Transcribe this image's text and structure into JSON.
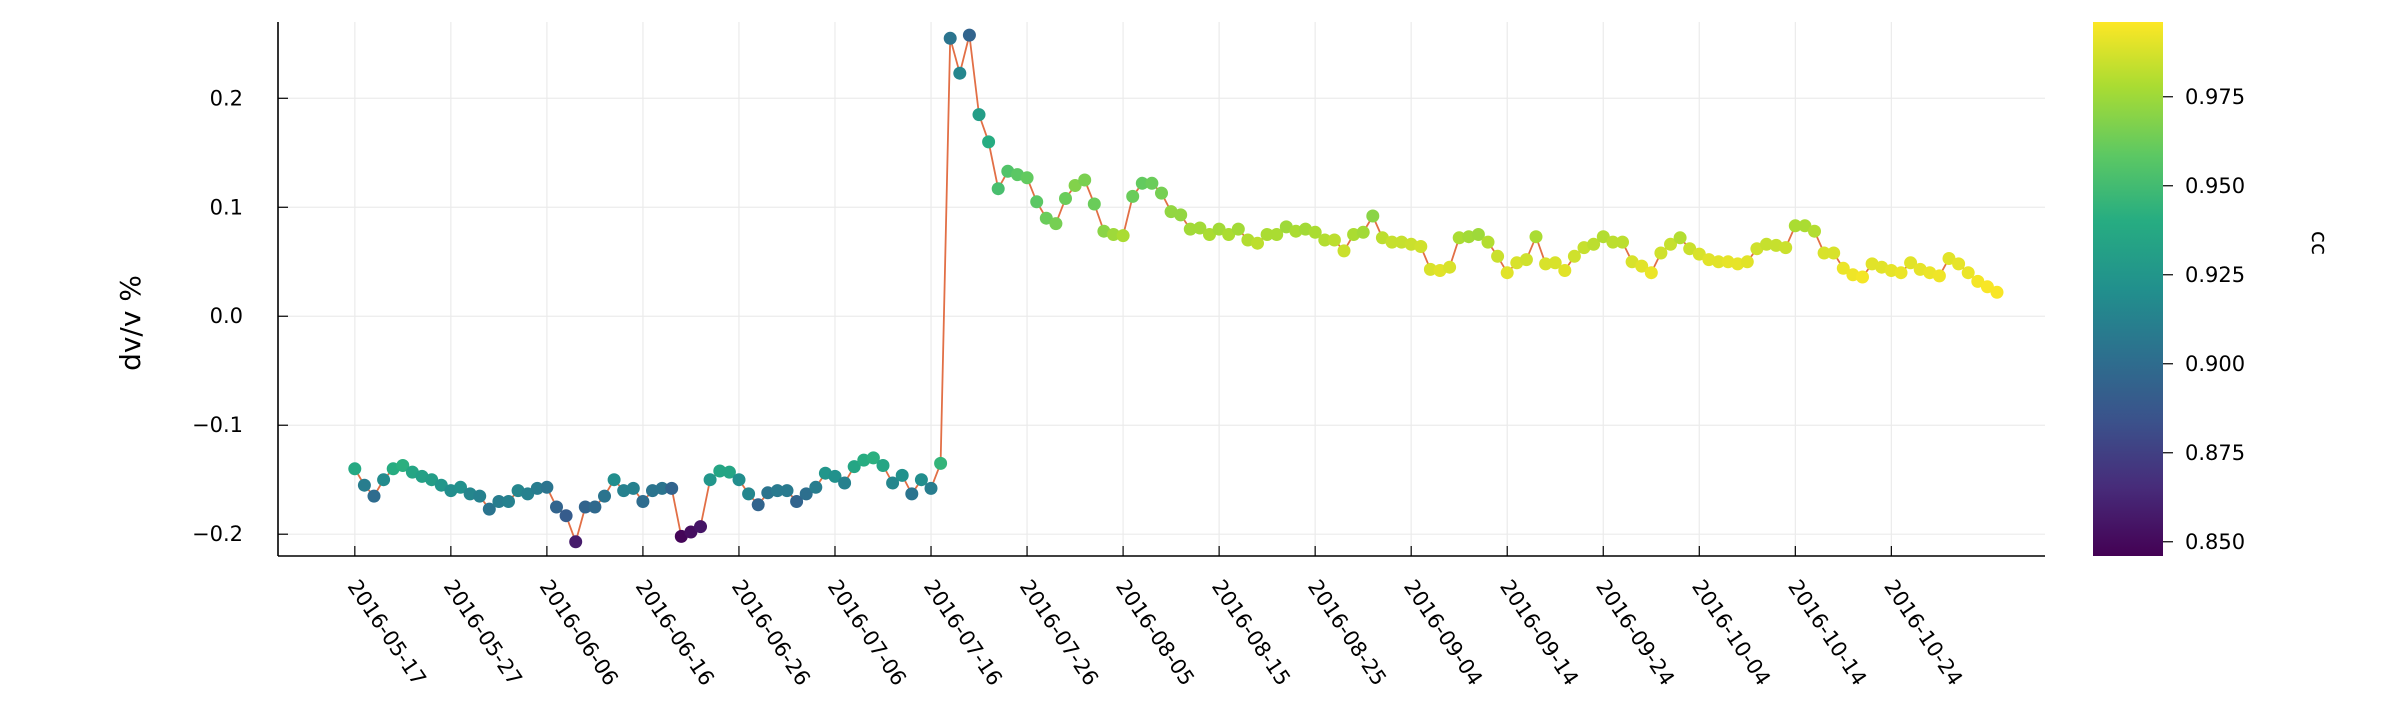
{
  "chart_data": {
    "type": "scatter",
    "title": "",
    "xlabel": "",
    "ylabel": "dv/v %",
    "ylim": [
      -0.22,
      0.27
    ],
    "xlim": [
      "2016-05-09",
      "2016-11-09"
    ],
    "yticks": [
      "0.2",
      "0.1",
      "0.0",
      "-0.1",
      "-0.2"
    ],
    "xticks": [
      "2016-05-17",
      "2016-05-27",
      "2016-06-06",
      "2016-06-16",
      "2016-06-26",
      "2016-07-06",
      "2016-07-16",
      "2016-07-26",
      "2016-08-05",
      "2016-08-15",
      "2016-08-25",
      "2016-09-04",
      "2016-09-14",
      "2016-09-24",
      "2016-10-04",
      "2016-10-14",
      "2016-10-24"
    ],
    "grid": true,
    "legend": "none",
    "line_color": "#e26f46",
    "colorbar": {
      "label": "cc",
      "range": [
        0.846,
        0.996
      ],
      "ticks": [
        "0.975",
        "0.950",
        "0.925",
        "0.900",
        "0.875",
        "0.850"
      ],
      "colormap": "viridis"
    },
    "series": [
      {
        "start_date": "2016-05-17",
        "step": "1 day",
        "dvv": [
          -0.14,
          -0.155,
          -0.165,
          -0.15,
          -0.14,
          -0.137,
          -0.143,
          -0.147,
          -0.15,
          -0.155,
          -0.16,
          -0.157,
          -0.163,
          -0.165,
          -0.177,
          -0.17,
          -0.17,
          -0.16,
          -0.163,
          -0.158,
          -0.157,
          -0.175,
          -0.183,
          -0.207,
          -0.175,
          -0.175,
          -0.165,
          -0.15,
          -0.16,
          -0.158,
          -0.17,
          -0.16,
          -0.158,
          -0.158,
          -0.202,
          -0.198,
          -0.193,
          -0.15,
          -0.142,
          -0.143,
          -0.15,
          -0.163,
          -0.173,
          -0.162,
          -0.16,
          -0.16,
          -0.17,
          -0.163,
          -0.157,
          -0.144,
          -0.147,
          -0.153,
          -0.138,
          -0.132,
          -0.13,
          -0.137,
          -0.153,
          -0.146,
          -0.163,
          -0.15,
          -0.158,
          -0.135,
          0.255,
          0.223,
          0.258,
          0.185,
          0.16,
          0.117,
          0.133,
          0.13,
          0.127,
          0.105,
          0.09,
          0.085,
          0.108,
          0.12,
          0.125,
          0.103,
          0.078,
          0.075,
          0.074,
          0.11,
          0.122,
          0.122,
          0.113,
          0.096,
          0.093,
          0.08,
          0.081,
          0.075,
          0.08,
          0.075,
          0.08,
          0.07,
          0.067,
          0.075,
          0.075,
          0.082,
          0.078,
          0.08,
          0.077,
          0.07,
          0.07,
          0.06,
          0.075,
          0.077,
          0.092,
          0.072,
          0.068,
          0.068,
          0.066,
          0.064,
          0.043,
          0.042,
          0.045,
          0.072,
          0.073,
          0.075,
          0.068,
          0.055,
          0.04,
          0.049,
          0.052,
          0.073,
          0.048,
          0.049,
          0.042,
          0.055,
          0.063,
          0.066,
          0.073,
          0.068,
          0.068,
          0.05,
          0.046,
          0.04,
          0.058,
          0.066,
          0.072,
          0.062,
          0.057,
          0.052,
          0.05,
          0.05,
          0.048,
          0.05,
          0.062,
          0.066,
          0.065,
          0.063,
          0.083,
          0.083,
          0.078,
          0.058,
          0.058,
          0.044,
          0.038,
          0.036,
          0.048,
          0.045,
          0.042,
          0.04,
          0.049,
          0.043,
          0.04,
          0.037,
          0.053,
          0.048,
          0.04,
          0.032,
          0.027,
          0.022
        ],
        "cc": [
          0.938,
          0.91,
          0.9,
          0.918,
          0.94,
          0.942,
          0.935,
          0.932,
          0.93,
          0.925,
          0.92,
          0.922,
          0.915,
          0.912,
          0.905,
          0.91,
          0.912,
          0.915,
          0.912,
          0.91,
          0.905,
          0.895,
          0.89,
          0.858,
          0.895,
          0.898,
          0.905,
          0.92,
          0.912,
          0.912,
          0.9,
          0.905,
          0.905,
          0.895,
          0.848,
          0.852,
          0.855,
          0.925,
          0.935,
          0.935,
          0.92,
          0.915,
          0.895,
          0.905,
          0.908,
          0.908,
          0.895,
          0.902,
          0.91,
          0.925,
          0.922,
          0.912,
          0.935,
          0.94,
          0.942,
          0.935,
          0.915,
          0.922,
          0.905,
          0.92,
          0.91,
          0.945,
          0.905,
          0.915,
          0.895,
          0.93,
          0.94,
          0.952,
          0.955,
          0.958,
          0.96,
          0.958,
          0.962,
          0.965,
          0.962,
          0.968,
          0.966,
          0.962,
          0.97,
          0.975,
          0.978,
          0.962,
          0.96,
          0.962,
          0.965,
          0.972,
          0.972,
          0.976,
          0.976,
          0.978,
          0.976,
          0.978,
          0.976,
          0.98,
          0.982,
          0.978,
          0.978,
          0.975,
          0.978,
          0.976,
          0.978,
          0.98,
          0.982,
          0.985,
          0.978,
          0.976,
          0.97,
          0.982,
          0.984,
          0.984,
          0.985,
          0.986,
          0.988,
          0.99,
          0.988,
          0.978,
          0.976,
          0.975,
          0.98,
          0.985,
          0.99,
          0.988,
          0.986,
          0.978,
          0.988,
          0.988,
          0.99,
          0.986,
          0.984,
          0.982,
          0.98,
          0.982,
          0.982,
          0.988,
          0.99,
          0.992,
          0.986,
          0.984,
          0.98,
          0.985,
          0.988,
          0.99,
          0.99,
          0.991,
          0.991,
          0.99,
          0.986,
          0.984,
          0.984,
          0.985,
          0.978,
          0.978,
          0.98,
          0.988,
          0.988,
          0.992,
          0.993,
          0.994,
          0.99,
          0.99,
          0.991,
          0.992,
          0.99,
          0.991,
          0.992,
          0.993,
          0.99,
          0.991,
          0.992,
          0.994,
          0.995,
          0.995
        ]
      }
    ]
  }
}
